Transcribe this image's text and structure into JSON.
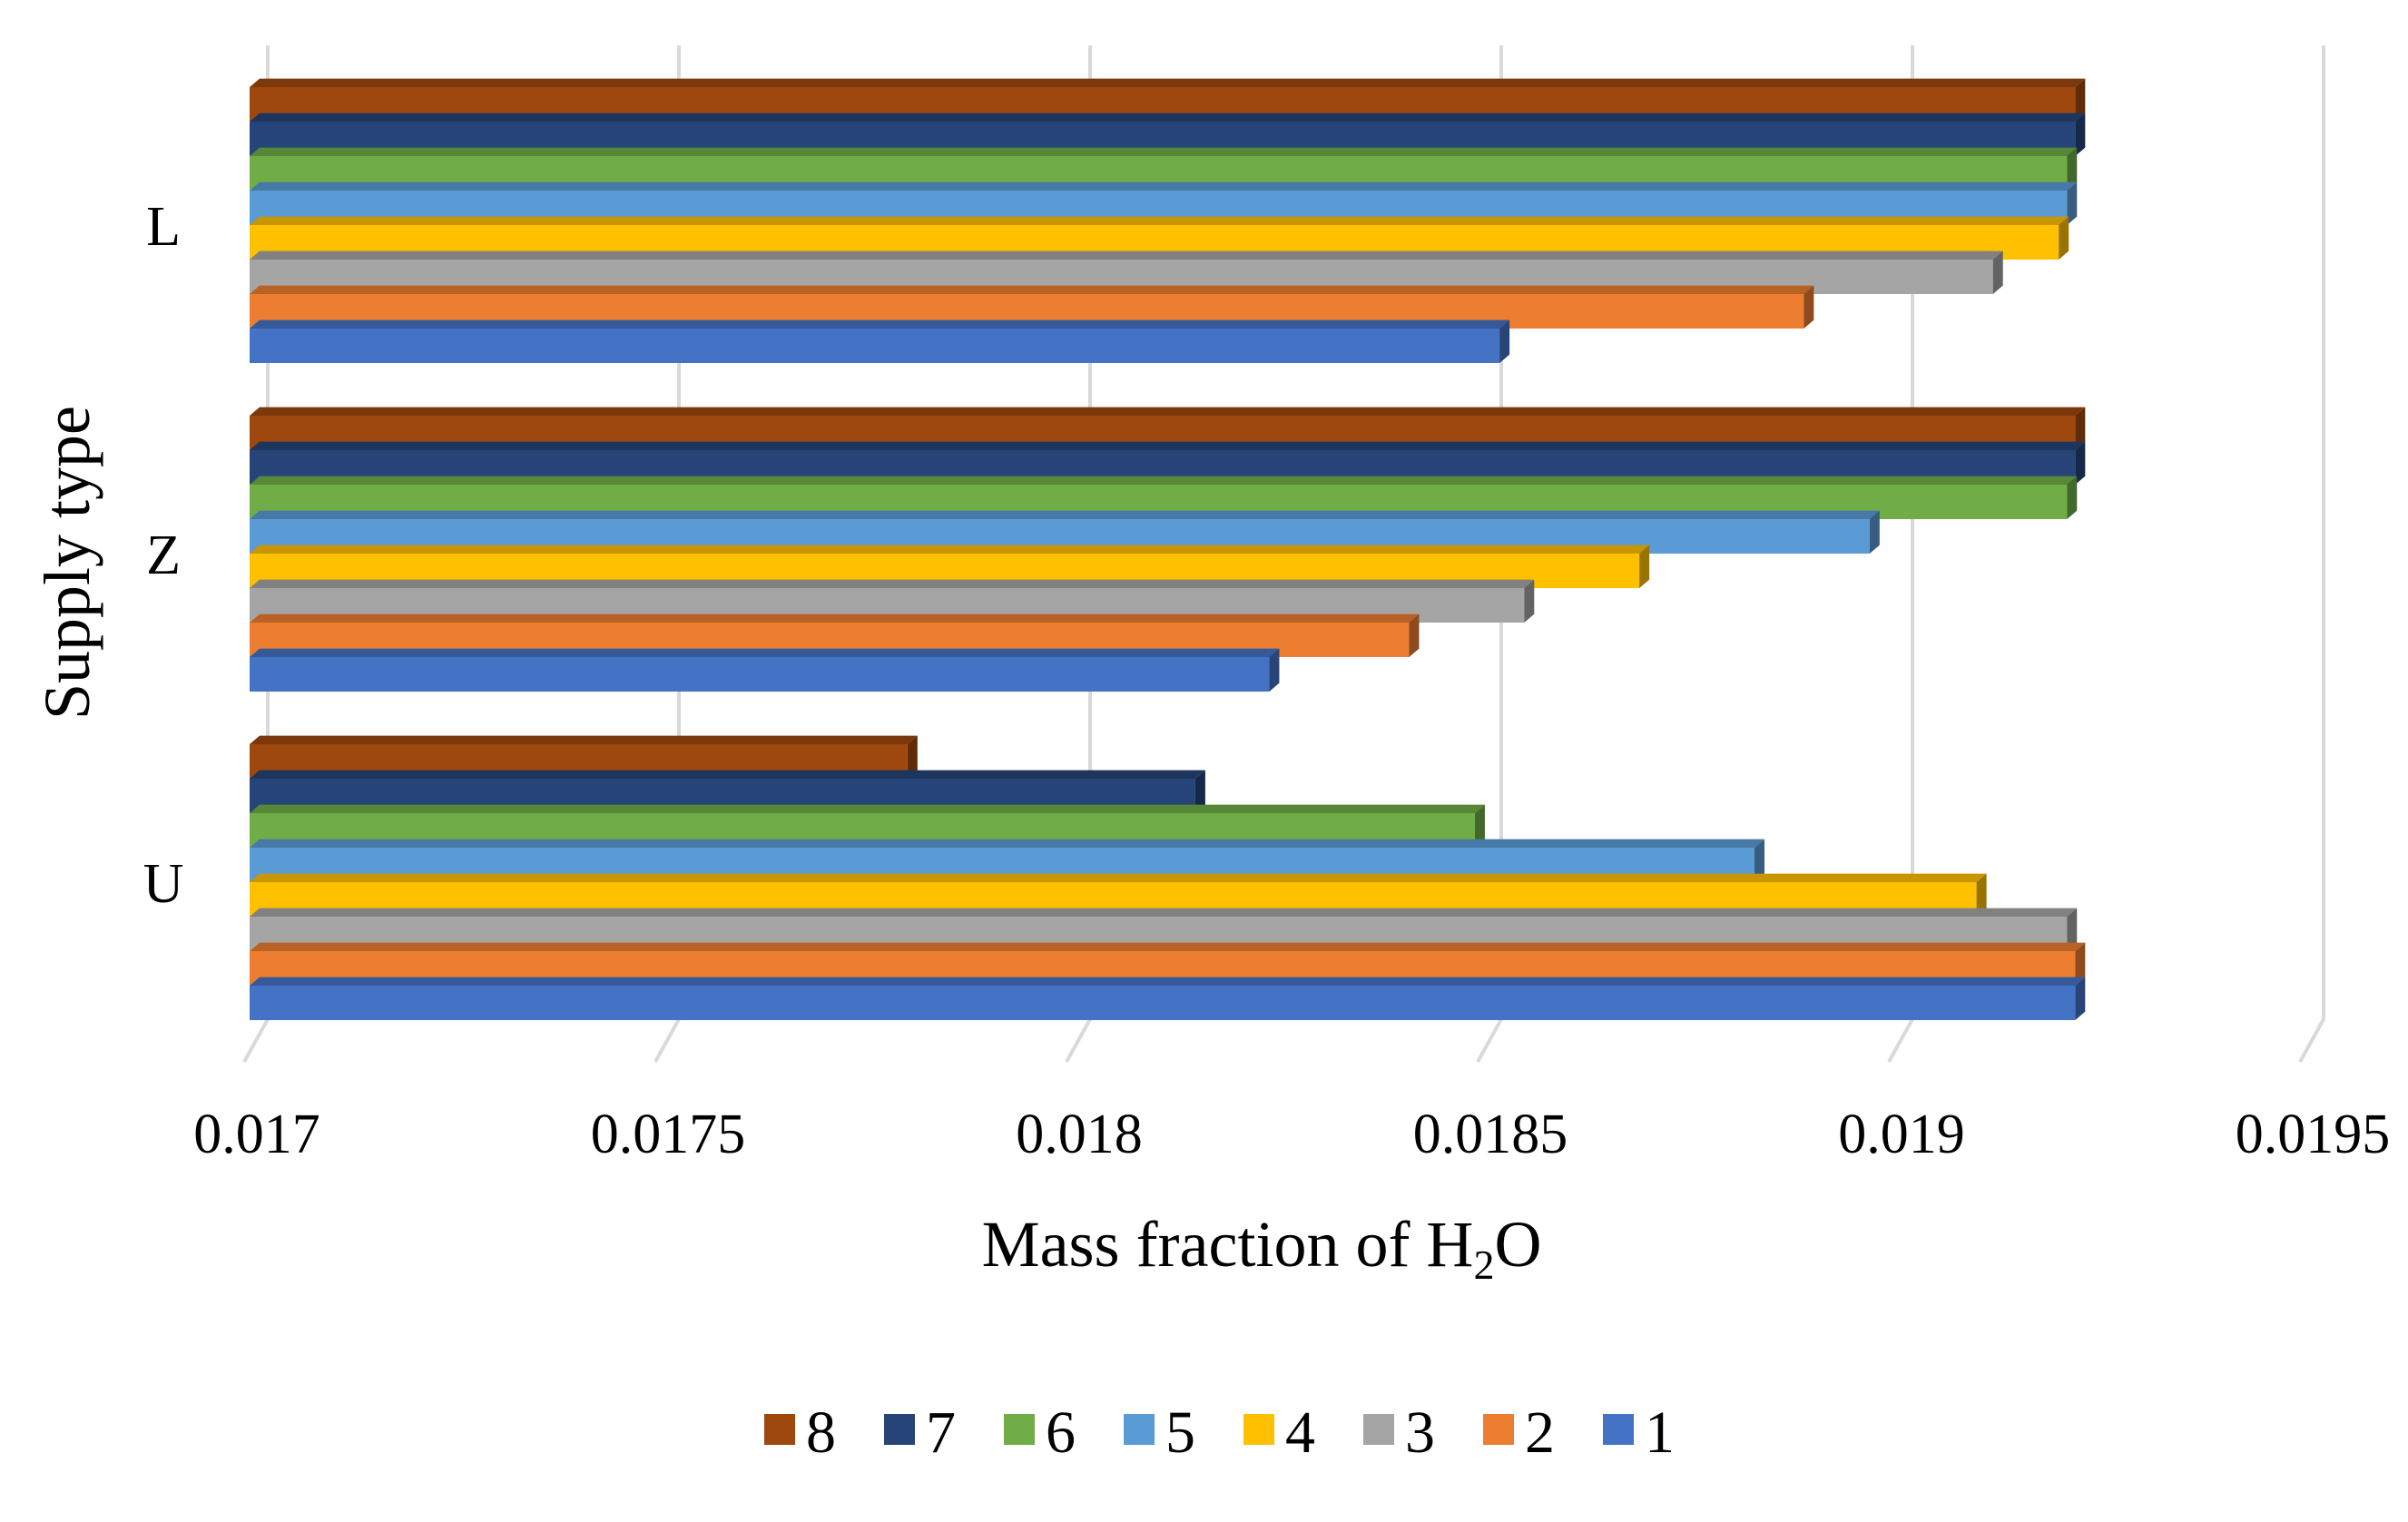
{
  "chart_data": {
    "type": "bar",
    "orientation": "horizontal",
    "style": "3d",
    "title": "",
    "xlabel": {
      "before": "Mass fraction of H",
      "subscript": "2",
      "after": "O"
    },
    "ylabel": "Supply type",
    "xlim": [
      0.017,
      0.0195
    ],
    "xticks": [
      "0.017",
      "0.0175",
      "0.018",
      "0.0185",
      "0.019",
      "0.0195"
    ],
    "xtick_values": [
      0.017,
      0.0175,
      0.018,
      0.0185,
      0.019,
      0.0195
    ],
    "grid": "vertical",
    "categories": [
      "L",
      "Z",
      "U"
    ],
    "legend_position": "bottom",
    "series": [
      {
        "name": "1",
        "color": "#4472C4",
        "values": [
          0.01852,
          0.01824,
          0.01922
        ]
      },
      {
        "name": "2",
        "color": "#ED7D31",
        "values": [
          0.01889,
          0.01841,
          0.01922
        ]
      },
      {
        "name": "3",
        "color": "#A5A5A5",
        "values": [
          0.01912,
          0.01855,
          0.01921
        ]
      },
      {
        "name": "4",
        "color": "#FFC000",
        "values": [
          0.0192,
          0.01869,
          0.0191
        ]
      },
      {
        "name": "5",
        "color": "#5B9BD5",
        "values": [
          0.01921,
          0.01897,
          0.01883
        ]
      },
      {
        "name": "6",
        "color": "#70AD47",
        "values": [
          0.01921,
          0.01921,
          0.01849
        ]
      },
      {
        "name": "7",
        "color": "#264478",
        "values": [
          0.01922,
          0.01922,
          0.01815
        ]
      },
      {
        "name": "8",
        "color": "#9E480E",
        "values": [
          0.01922,
          0.01922,
          0.0178
        ]
      }
    ]
  }
}
